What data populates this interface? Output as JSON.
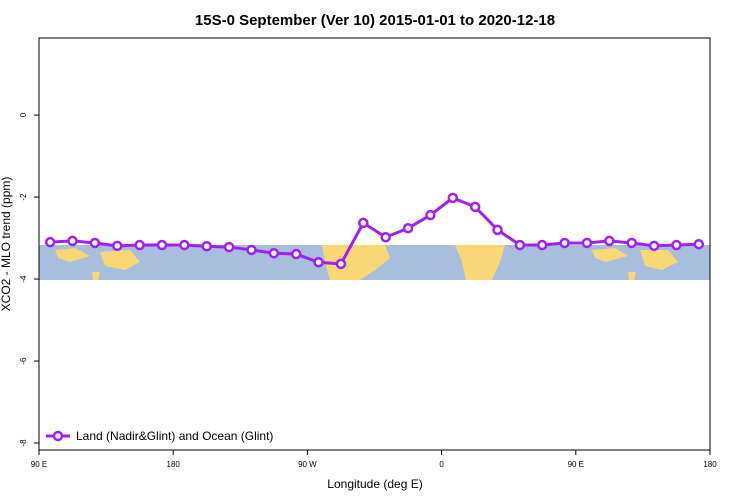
{
  "chart_data": {
    "type": "line",
    "title": "15S-0 September (Ver 10)   2015-01-01 to 2020-12-18",
    "x_label": "Longitude (deg E)",
    "y_label": "XCO2 - MLO trend (ppm)",
    "x": [
      97.5,
      112.5,
      127.5,
      142.5,
      157.5,
      172.5,
      187.5,
      202.5,
      217.5,
      232.5,
      247.5,
      262.5,
      277.5,
      292.5,
      307.5,
      322.5,
      337.5,
      352.5,
      367.5,
      382.5,
      397.5,
      412.5,
      427.5,
      442.5,
      457.5,
      472.5,
      487.5,
      502.5,
      517.5,
      532.5
    ],
    "series": [
      {
        "name": "Land (Nadir&Glint) and Ocean (Glint)",
        "color": "#a020f0",
        "values": [
          -3.1,
          -3.07,
          -3.12,
          -3.19,
          -3.17,
          -3.17,
          -3.17,
          -3.2,
          -3.22,
          -3.29,
          -3.37,
          -3.39,
          -3.59,
          -3.63,
          -2.63,
          -2.98,
          -2.76,
          -2.44,
          -2.02,
          -2.24,
          -2.8,
          -3.17,
          -3.17,
          -3.12,
          -3.12,
          -3.07,
          -3.12,
          -3.19,
          -3.17,
          -3.15
        ]
      }
    ],
    "xlim": [
      90,
      540
    ],
    "xticks": [
      {
        "value": 90,
        "label": "90 E"
      },
      {
        "value": 180,
        "label": "180"
      },
      {
        "value": 270,
        "label": "90 W"
      },
      {
        "value": 360,
        "label": "0"
      },
      {
        "value": 450,
        "label": "90 E"
      },
      {
        "value": 540,
        "label": "180"
      }
    ],
    "ylim": [
      -8.17,
      1.88
    ],
    "yticks": [
      0,
      -2,
      -4,
      -6,
      -8
    ],
    "legend": "bottom-left"
  }
}
